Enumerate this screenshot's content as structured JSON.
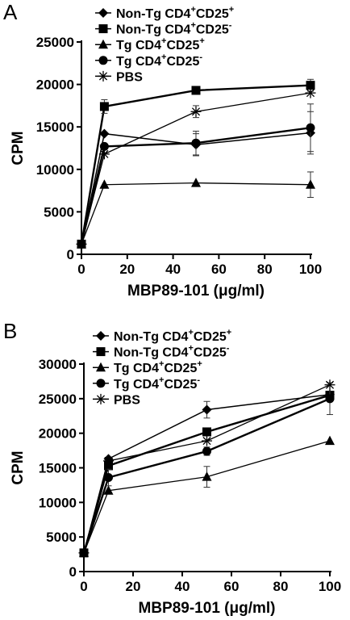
{
  "chart_data": [
    {
      "panel": "A",
      "type": "line",
      "xlabel": "MBP89-101 (μg/ml)",
      "ylabel": "CPM",
      "xlim": [
        0,
        100
      ],
      "ylim": [
        0,
        25000
      ],
      "xticks": [
        0,
        20,
        40,
        60,
        80,
        100
      ],
      "yticks": [
        0,
        5000,
        10000,
        15000,
        20000,
        25000
      ],
      "x": [
        0,
        10,
        50,
        100
      ],
      "legend_position": "top",
      "series": [
        {
          "name": "Non-Tg CD4+CD25+",
          "name_base": "Non-Tg CD4",
          "sup1": "+",
          "mid": "CD25",
          "sup2": "+",
          "marker": "diamond",
          "values": [
            1200,
            14200,
            12900,
            14300
          ],
          "errors": [
            0,
            0,
            1300,
            2500
          ]
        },
        {
          "name": "Non-Tg CD4+CD25-",
          "name_base": "Non-Tg CD4",
          "sup1": "+",
          "mid": "CD25",
          "sup2": "-",
          "marker": "square",
          "values": [
            1200,
            17400,
            19300,
            19900
          ],
          "errors": [
            0,
            800,
            0,
            700
          ]
        },
        {
          "name": "Tg CD4+CD25+",
          "name_base": "Tg CD4",
          "sup1": "+",
          "mid": "CD25",
          "sup2": "+",
          "marker": "triangle",
          "values": [
            1200,
            8200,
            8400,
            8200
          ],
          "errors": [
            0,
            0,
            0,
            1500
          ]
        },
        {
          "name": "Tg CD4+CD25-",
          "name_base": "Tg CD4",
          "sup1": "+",
          "mid": "CD25",
          "sup2": "-",
          "marker": "circle",
          "values": [
            1200,
            12700,
            13100,
            14900
          ],
          "errors": [
            0,
            0,
            1400,
            2800
          ]
        },
        {
          "name": "PBS",
          "name_base": "PBS",
          "sup1": "",
          "mid": "",
          "sup2": "",
          "marker": "asterisk",
          "values": [
            1200,
            11800,
            16800,
            19000
          ],
          "errors": [
            0,
            0,
            700,
            0
          ]
        }
      ]
    },
    {
      "panel": "B",
      "type": "line",
      "xlabel": "MBP89-101 (μg/ml)",
      "ylabel": "CPM",
      "xlim": [
        0,
        100
      ],
      "ylim": [
        0,
        30000
      ],
      "xticks": [
        0,
        20,
        40,
        60,
        80,
        100
      ],
      "yticks": [
        0,
        5000,
        10000,
        15000,
        20000,
        25000,
        30000
      ],
      "x": [
        0,
        10,
        50,
        100
      ],
      "legend_position": "top",
      "series": [
        {
          "name": "Non-Tg CD4+CD25+",
          "name_base": "Non-Tg CD4",
          "sup1": "+",
          "mid": "CD25",
          "sup2": "+",
          "marker": "diamond",
          "values": [
            2700,
            16300,
            23400,
            25600
          ],
          "errors": [
            0,
            0,
            1200,
            0
          ]
        },
        {
          "name": "Non-Tg CD4+CD25-",
          "name_base": "Non-Tg CD4",
          "sup1": "+",
          "mid": "CD25",
          "sup2": "-",
          "marker": "square",
          "values": [
            2700,
            15300,
            20200,
            25500
          ],
          "errors": [
            0,
            0,
            0,
            0
          ]
        },
        {
          "name": "Tg CD4+CD25+",
          "name_base": "Tg CD4",
          "sup1": "+",
          "mid": "CD25",
          "sup2": "+",
          "marker": "triangle",
          "values": [
            2700,
            11700,
            13700,
            18900
          ],
          "errors": [
            0,
            0,
            1500,
            0
          ]
        },
        {
          "name": "Tg CD4+CD25-",
          "name_base": "Tg CD4",
          "sup1": "+",
          "mid": "CD25",
          "sup2": "-",
          "marker": "circle",
          "values": [
            2700,
            13600,
            17400,
            25000
          ],
          "errors": [
            0,
            1200,
            600,
            2300
          ]
        },
        {
          "name": "PBS",
          "name_base": "PBS",
          "sup1": "",
          "mid": "",
          "sup2": "",
          "marker": "asterisk",
          "values": [
            2700,
            16000,
            18900,
            27000
          ],
          "errors": [
            0,
            0,
            0,
            0
          ]
        }
      ]
    }
  ]
}
